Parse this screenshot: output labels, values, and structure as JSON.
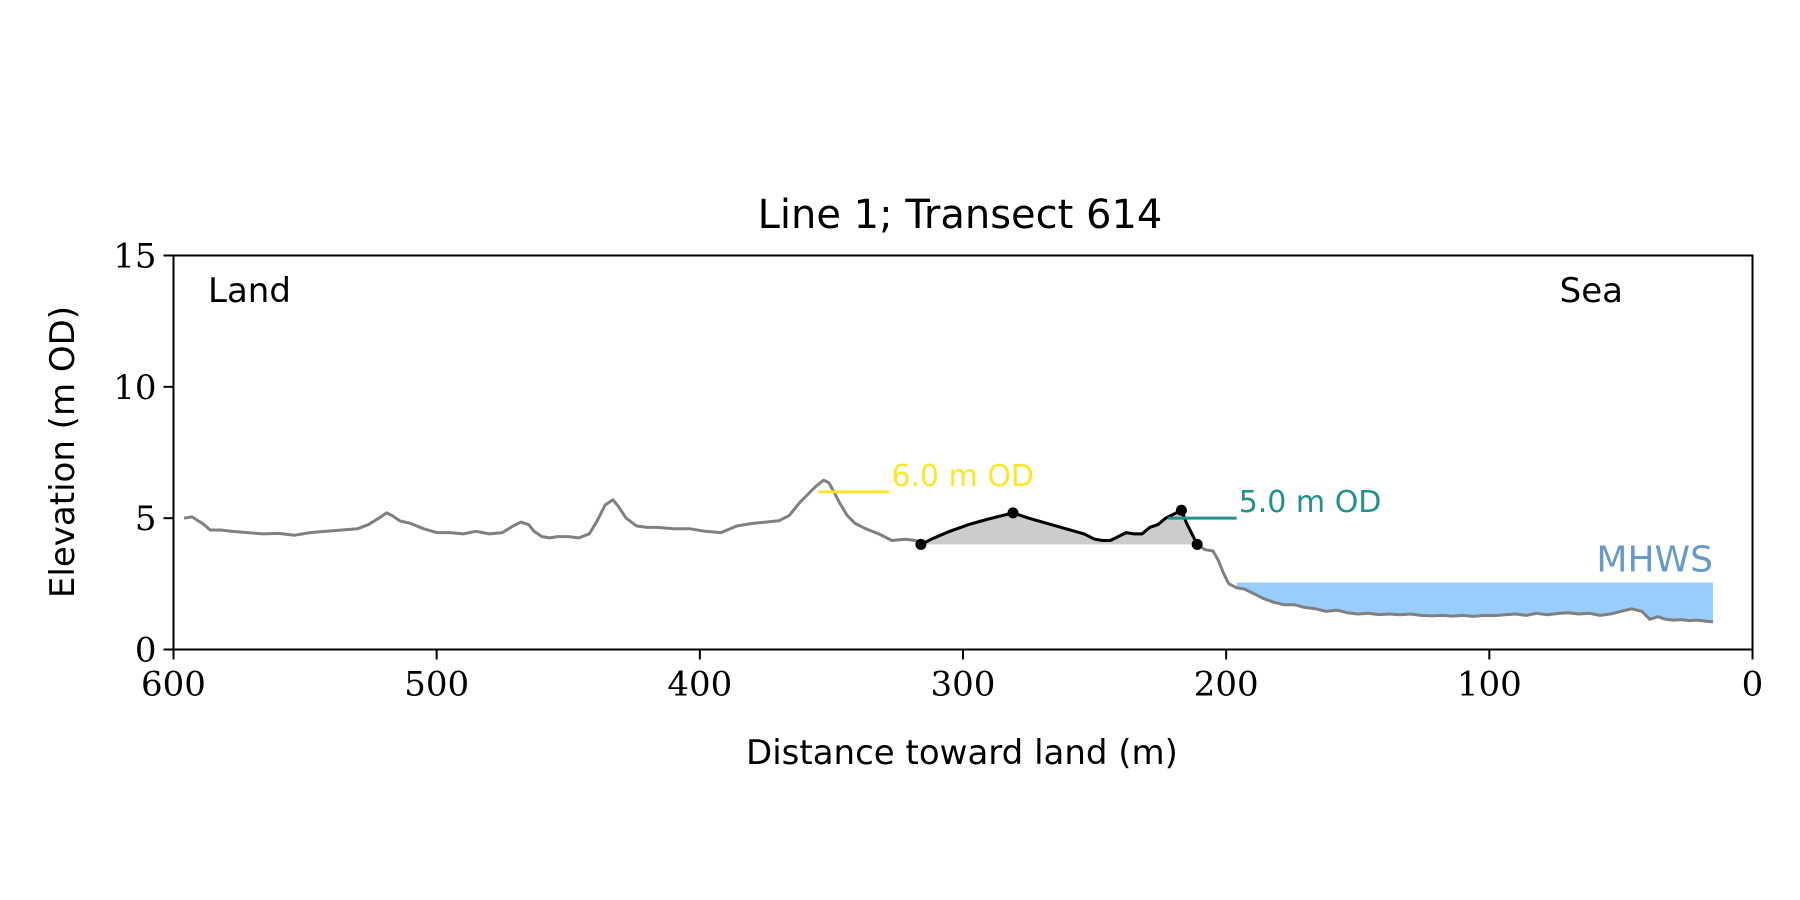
{
  "chart_data": {
    "type": "line",
    "title": "Line 1; Transect 614",
    "xlabel": "Distance toward land (m)",
    "ylabel": "Elevation (m OD)",
    "xlim": [
      600,
      0
    ],
    "ylim": [
      0,
      15
    ],
    "x_inverted": true,
    "x_ticks": [
      600,
      500,
      400,
      300,
      200,
      100,
      0
    ],
    "y_ticks": [
      0,
      5,
      10,
      15
    ],
    "grid": false,
    "corner_labels": {
      "left": "Land",
      "right": "Sea"
    },
    "colors": {
      "profile": "#808080",
      "dune_profile": "#000000",
      "dune_fill": "#cccccc",
      "line_6m": "#fde725",
      "line_5m": "#21918c",
      "mhws_fill": "#99ccff",
      "mhws_label": "#6699cc"
    },
    "reference_lines": [
      {
        "label": "6.0 m OD",
        "y": 6.0,
        "x_start": 355,
        "x_end": 328,
        "color": "#fde725"
      },
      {
        "label": "5.0 m OD",
        "y": 5.0,
        "x_start": 222,
        "x_end": 196,
        "color": "#21918c"
      }
    ],
    "mhws": {
      "label": "MHWS",
      "level": 2.55,
      "x_start": 196,
      "x_end": 15
    },
    "dune": {
      "base_level": 4.0,
      "x_start": 316,
      "x_end": 211,
      "markers": [
        {
          "x": 316,
          "y": 4.0
        },
        {
          "x": 281,
          "y": 5.2
        },
        {
          "x": 217,
          "y": 5.3
        },
        {
          "x": 211,
          "y": 4.0
        }
      ]
    },
    "series": [
      {
        "name": "",
        "x": [
          596,
          593,
          589,
          586,
          582,
          578,
          572,
          566,
          560,
          554,
          548,
          542,
          536,
          530,
          526,
          522,
          519,
          517,
          514,
          510,
          505,
          500,
          495,
          490,
          485,
          480,
          475,
          471,
          468,
          465,
          463,
          460,
          457,
          454,
          450,
          446,
          442,
          439,
          436,
          433,
          431,
          428,
          424,
          420,
          416,
          410,
          404,
          398,
          392,
          386,
          380,
          375,
          370,
          366,
          362,
          359,
          356,
          353,
          351,
          349,
          347,
          344,
          341,
          337,
          332,
          327,
          322,
          318,
          316,
          312,
          305,
          298,
          291,
          285,
          281,
          275,
          268,
          261,
          254,
          250,
          247,
          244,
          241,
          238,
          235,
          232,
          229,
          226,
          223,
          220,
          217,
          215,
          213,
          211,
          208,
          205,
          203,
          201,
          199,
          196,
          193,
          190,
          186,
          182,
          178,
          174,
          170,
          166,
          162,
          158,
          154,
          150,
          146,
          142,
          138,
          134,
          130,
          126,
          122,
          118,
          114,
          110,
          106,
          102,
          98,
          94,
          90,
          86,
          82,
          78,
          74,
          70,
          66,
          62,
          58,
          54,
          50,
          46,
          42,
          39,
          36,
          33,
          30,
          27,
          24,
          21,
          18,
          15
        ],
        "y": [
          5.0,
          5.05,
          4.8,
          4.55,
          4.55,
          4.5,
          4.45,
          4.4,
          4.42,
          4.35,
          4.45,
          4.5,
          4.55,
          4.6,
          4.75,
          5.0,
          5.2,
          5.1,
          4.9,
          4.8,
          4.6,
          4.45,
          4.45,
          4.4,
          4.5,
          4.4,
          4.45,
          4.7,
          4.85,
          4.75,
          4.5,
          4.3,
          4.25,
          4.3,
          4.3,
          4.25,
          4.4,
          4.9,
          5.5,
          5.7,
          5.45,
          5.0,
          4.7,
          4.65,
          4.65,
          4.6,
          4.6,
          4.5,
          4.45,
          4.7,
          4.8,
          4.85,
          4.9,
          5.1,
          5.6,
          5.9,
          6.2,
          6.45,
          6.35,
          6.0,
          5.6,
          5.1,
          4.8,
          4.6,
          4.4,
          4.15,
          4.2,
          4.15,
          4.0,
          4.2,
          4.5,
          4.75,
          4.95,
          5.1,
          5.2,
          5.0,
          4.8,
          4.6,
          4.4,
          4.2,
          4.15,
          4.15,
          4.3,
          4.45,
          4.4,
          4.4,
          4.65,
          4.75,
          5.0,
          5.15,
          5.3,
          4.8,
          4.4,
          4.0,
          3.8,
          3.75,
          3.4,
          2.9,
          2.5,
          2.35,
          2.3,
          2.15,
          1.95,
          1.8,
          1.7,
          1.7,
          1.6,
          1.55,
          1.45,
          1.5,
          1.4,
          1.35,
          1.38,
          1.33,
          1.35,
          1.32,
          1.35,
          1.3,
          1.28,
          1.3,
          1.27,
          1.3,
          1.26,
          1.3,
          1.29,
          1.32,
          1.35,
          1.3,
          1.38,
          1.32,
          1.37,
          1.4,
          1.35,
          1.38,
          1.3,
          1.35,
          1.45,
          1.55,
          1.45,
          1.15,
          1.25,
          1.15,
          1.12,
          1.14,
          1.1,
          1.12,
          1.08,
          1.05
        ]
      }
    ]
  }
}
